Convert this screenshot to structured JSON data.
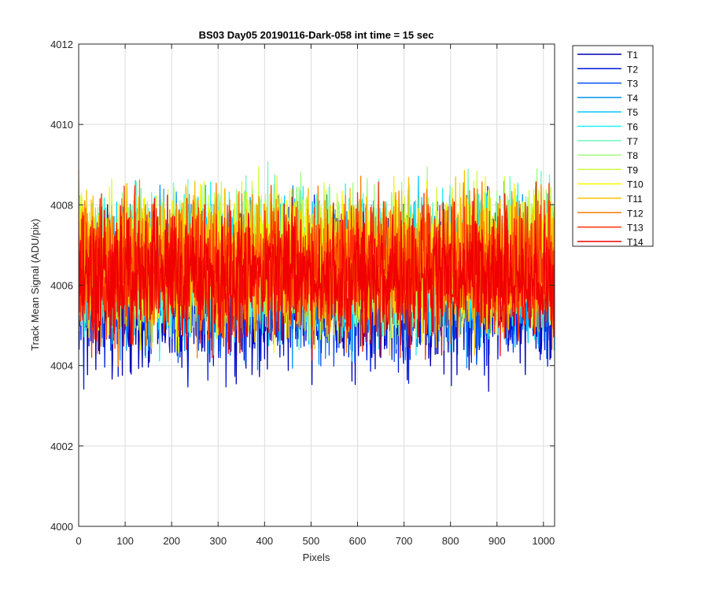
{
  "chart_data": {
    "type": "line",
    "title": "BS03 Day05 20190116-Dark-058 int time = 15 sec",
    "xlabel": "Pixels",
    "ylabel": "Track Mean Signal (ADU/pix)",
    "xlim": [
      0,
      1024
    ],
    "ylim": [
      4000,
      4012
    ],
    "xticks": [
      0,
      100,
      200,
      300,
      400,
      500,
      600,
      700,
      800,
      900,
      1000
    ],
    "yticks": [
      4000,
      4002,
      4004,
      4006,
      4008,
      4010,
      4012
    ],
    "grid": true,
    "legend_position": "outside-top-right",
    "points_per_series": 1024,
    "series": [
      {
        "name": "T1",
        "color": "#0000b4",
        "center": 4005.7,
        "noise": 0.95
      },
      {
        "name": "T2",
        "color": "#0018dc",
        "center": 4005.8,
        "noise": 0.95
      },
      {
        "name": "T3",
        "color": "#0050f0",
        "center": 4006.0,
        "noise": 0.9
      },
      {
        "name": "T4",
        "color": "#0090f8",
        "center": 4006.2,
        "noise": 0.9
      },
      {
        "name": "T5",
        "color": "#00c8fc",
        "center": 4006.4,
        "noise": 0.9
      },
      {
        "name": "T6",
        "color": "#20f0f0",
        "center": 4006.5,
        "noise": 0.9
      },
      {
        "name": "T7",
        "color": "#70f8c0",
        "center": 4006.6,
        "noise": 0.9
      },
      {
        "name": "T8",
        "color": "#a0fc80",
        "center": 4006.7,
        "noise": 0.9
      },
      {
        "name": "T9",
        "color": "#d0fc40",
        "center": 4006.7,
        "noise": 0.9
      },
      {
        "name": "T10",
        "color": "#f8f800",
        "center": 4006.6,
        "noise": 0.9
      },
      {
        "name": "T11",
        "color": "#fcc000",
        "center": 4006.5,
        "noise": 0.9
      },
      {
        "name": "T12",
        "color": "#fc7c00",
        "center": 4006.5,
        "noise": 0.9
      },
      {
        "name": "T13",
        "color": "#fc3000",
        "center": 4006.4,
        "noise": 0.9
      },
      {
        "name": "T14",
        "color": "#f00000",
        "center": 4006.2,
        "noise": 0.9
      }
    ]
  }
}
